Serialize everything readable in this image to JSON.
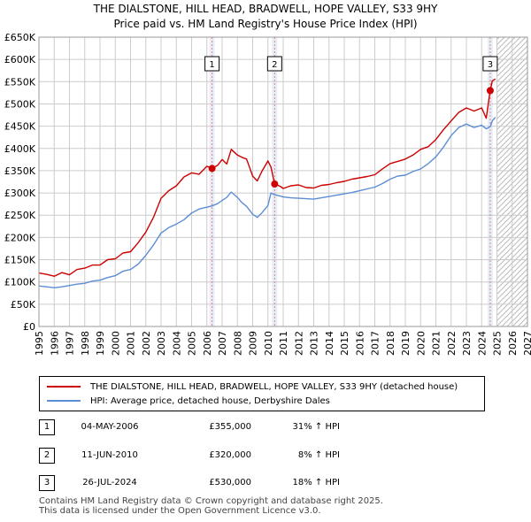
{
  "title_line1": "THE DIALSTONE, HILL HEAD, BRADWELL, HOPE VALLEY, S33 9HY",
  "title_line2": "Price paid vs. HM Land Registry's House Price Index (HPI)",
  "colors": {
    "property": "#cc0000",
    "hpi": "#5b8ed4",
    "grid": "#cccccc",
    "marker_line": "#e08080",
    "shade": "#e8eef8"
  },
  "chart_data": {
    "type": "line",
    "title": "Price paid vs. HM Land Registry's House Price Index (HPI)",
    "xlabel": "",
    "ylabel": "",
    "xlim": [
      1995,
      2027
    ],
    "ylim": [
      0,
      650000
    ],
    "x_ticks": [
      "1995",
      "1996",
      "1997",
      "1998",
      "1999",
      "2000",
      "2001",
      "2002",
      "2003",
      "2004",
      "2005",
      "2006",
      "2007",
      "2008",
      "2009",
      "2010",
      "2011",
      "2012",
      "2013",
      "2014",
      "2015",
      "2016",
      "2017",
      "2018",
      "2019",
      "2020",
      "2021",
      "2022",
      "2023",
      "2024",
      "2025",
      "2026",
      "2027"
    ],
    "y_ticks": [
      {
        "value": 0,
        "label": "£0"
      },
      {
        "value": 50000,
        "label": "£50K"
      },
      {
        "value": 100000,
        "label": "£100K"
      },
      {
        "value": 150000,
        "label": "£150K"
      },
      {
        "value": 200000,
        "label": "£200K"
      },
      {
        "value": 250000,
        "label": "£250K"
      },
      {
        "value": 300000,
        "label": "£300K"
      },
      {
        "value": 350000,
        "label": "£350K"
      },
      {
        "value": 400000,
        "label": "£400K"
      },
      {
        "value": 450000,
        "label": "£450K"
      },
      {
        "value": 500000,
        "label": "£500K"
      },
      {
        "value": 550000,
        "label": "£550K"
      },
      {
        "value": 600000,
        "label": "£600K"
      },
      {
        "value": 650000,
        "label": "£650K"
      }
    ],
    "future_from": 2025.0,
    "hatch_from": 2025.0,
    "series": [
      {
        "name": "THE DIALSTONE, HILL HEAD, BRADWELL, HOPE VALLEY, S33 9HY (detached house)",
        "x": [
          1995.0,
          1995.5,
          1996.0,
          1996.5,
          1997.0,
          1997.5,
          1998.0,
          1998.5,
          1999.0,
          1999.5,
          2000.0,
          2000.5,
          2001.0,
          2001.5,
          2002.0,
          2002.5,
          2003.0,
          2003.5,
          2004.0,
          2004.5,
          2005.0,
          2005.5,
          2006.0,
          2006.34,
          2006.7,
          2007.0,
          2007.3,
          2007.6,
          2008.0,
          2008.3,
          2008.6,
          2009.0,
          2009.3,
          2009.6,
          2010.0,
          2010.2,
          2010.44,
          2010.8,
          2011.0,
          2011.5,
          2012.0,
          2012.5,
          2013.0,
          2013.5,
          2014.0,
          2014.5,
          2015.0,
          2015.5,
          2016.0,
          2016.5,
          2017.0,
          2017.5,
          2018.0,
          2018.5,
          2019.0,
          2019.5,
          2020.0,
          2020.5,
          2021.0,
          2021.5,
          2022.0,
          2022.5,
          2023.0,
          2023.5,
          2024.0,
          2024.3,
          2024.56,
          2024.7,
          2024.9
        ],
        "y": [
          120000,
          117000,
          113000,
          121000,
          116000,
          128000,
          131000,
          138000,
          138000,
          150000,
          152000,
          165000,
          168000,
          188000,
          212000,
          245000,
          288000,
          305000,
          316000,
          336000,
          345000,
          342000,
          360000,
          355000,
          362000,
          375000,
          365000,
          398000,
          385000,
          380000,
          376000,
          338000,
          327000,
          348000,
          372000,
          358000,
          320000,
          315000,
          310000,
          316000,
          318000,
          312000,
          311000,
          317000,
          319000,
          323000,
          326000,
          331000,
          334000,
          337000,
          341000,
          354000,
          366000,
          371000,
          376000,
          385000,
          398000,
          404000,
          420000,
          442000,
          462000,
          481000,
          491000,
          484000,
          491000,
          468000,
          530000,
          552000,
          556000
        ]
      },
      {
        "name": "HPI: Average price, detached house, Derbyshire Dales",
        "x": [
          1995.0,
          1995.5,
          1996.0,
          1996.5,
          1997.0,
          1997.5,
          1998.0,
          1998.5,
          1999.0,
          1999.5,
          2000.0,
          2000.5,
          2001.0,
          2001.5,
          2002.0,
          2002.5,
          2003.0,
          2003.5,
          2004.0,
          2004.5,
          2005.0,
          2005.5,
          2006.0,
          2006.34,
          2006.7,
          2007.0,
          2007.3,
          2007.6,
          2008.0,
          2008.3,
          2008.6,
          2009.0,
          2009.3,
          2009.6,
          2010.0,
          2010.2,
          2010.44,
          2010.8,
          2011.0,
          2011.5,
          2012.0,
          2012.5,
          2013.0,
          2013.5,
          2014.0,
          2014.5,
          2015.0,
          2015.5,
          2016.0,
          2016.5,
          2017.0,
          2017.5,
          2018.0,
          2018.5,
          2019.0,
          2019.5,
          2020.0,
          2020.5,
          2021.0,
          2021.5,
          2022.0,
          2022.5,
          2023.0,
          2023.5,
          2024.0,
          2024.3,
          2024.56,
          2024.7,
          2024.9
        ],
        "y": [
          91000,
          89000,
          87000,
          89000,
          92000,
          95000,
          97000,
          102000,
          104000,
          110000,
          114000,
          124000,
          128000,
          140000,
          160000,
          183000,
          210000,
          222000,
          230000,
          240000,
          255000,
          264000,
          268000,
          271000,
          276000,
          283000,
          290000,
          302000,
          290000,
          278000,
          270000,
          252000,
          245000,
          255000,
          272000,
          300000,
          296000,
          293000,
          291000,
          289000,
          288000,
          287000,
          286000,
          289000,
          292000,
          295000,
          298000,
          301000,
          305000,
          309000,
          313000,
          321000,
          331000,
          338000,
          340000,
          348000,
          354000,
          366000,
          381000,
          403000,
          429000,
          447000,
          455000,
          447000,
          452000,
          444000,
          449000,
          462000,
          470000
        ]
      }
    ],
    "sales": [
      {
        "label": "1",
        "x": 2006.34,
        "date": "04-MAY-2006",
        "price": 355000,
        "price_label": "£355,000",
        "pct": "31% ↑ HPI"
      },
      {
        "label": "2",
        "x": 2010.44,
        "date": "11-JUN-2010",
        "price": 320000,
        "price_label": "£320,000",
        "pct": "8% ↑ HPI"
      },
      {
        "label": "3",
        "x": 2024.56,
        "date": "26-JUL-2024",
        "price": 530000,
        "price_label": "£530,000",
        "pct": "18% ↑ HPI"
      }
    ]
  },
  "legend": [
    {
      "label": "THE DIALSTONE, HILL HEAD, BRADWELL, HOPE VALLEY, S33 9HY (detached house)"
    },
    {
      "label": "HPI: Average price, detached house, Derbyshire Dales"
    }
  ],
  "footer": {
    "line1": "Contains HM Land Registry data © Crown copyright and database right 2025.",
    "line2": "This data is licensed under the Open Government Licence v3.0."
  }
}
